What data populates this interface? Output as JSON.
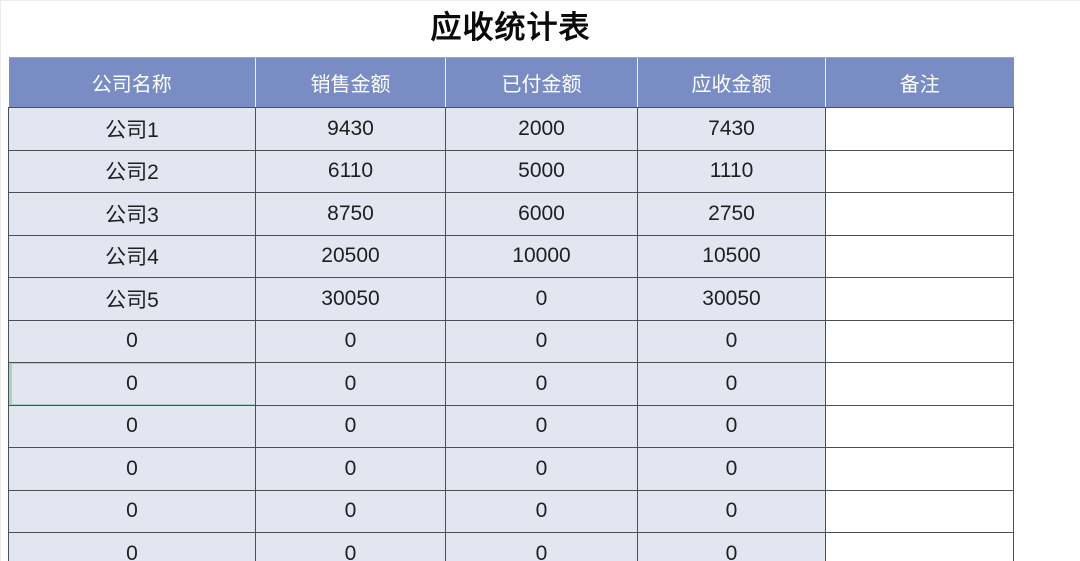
{
  "title": "应收统计表",
  "colors": {
    "header_bg": "#7a8cc4",
    "header_text": "#ffffff",
    "row_bg": "#e3e5f1",
    "remark_bg": "#ffffff",
    "border": "#4d4f55",
    "body_text": "#1f1f1f",
    "title_text": "#0a0a0a",
    "selection": "#9ed5c5"
  },
  "table": {
    "columns": [
      "公司名称",
      "销售金额",
      "已付金额",
      "应收金额",
      "备注"
    ],
    "rows": [
      [
        "公司1",
        "9430",
        "2000",
        "7430",
        ""
      ],
      [
        "公司2",
        "6110",
        "5000",
        "1110",
        ""
      ],
      [
        "公司3",
        "8750",
        "6000",
        "2750",
        ""
      ],
      [
        "公司4",
        "20500",
        "10000",
        "10500",
        ""
      ],
      [
        "公司5",
        "30050",
        "0",
        "30050",
        ""
      ],
      [
        "0",
        "0",
        "0",
        "0",
        ""
      ],
      [
        "0",
        "0",
        "0",
        "0",
        ""
      ],
      [
        "0",
        "0",
        "0",
        "0",
        ""
      ],
      [
        "0",
        "0",
        "0",
        "0",
        ""
      ],
      [
        "0",
        "0",
        "0",
        "0",
        ""
      ],
      [
        "0",
        "0",
        "0",
        "0",
        ""
      ]
    ],
    "selected_cell": {
      "row_index": 6,
      "col_index": 0
    }
  }
}
